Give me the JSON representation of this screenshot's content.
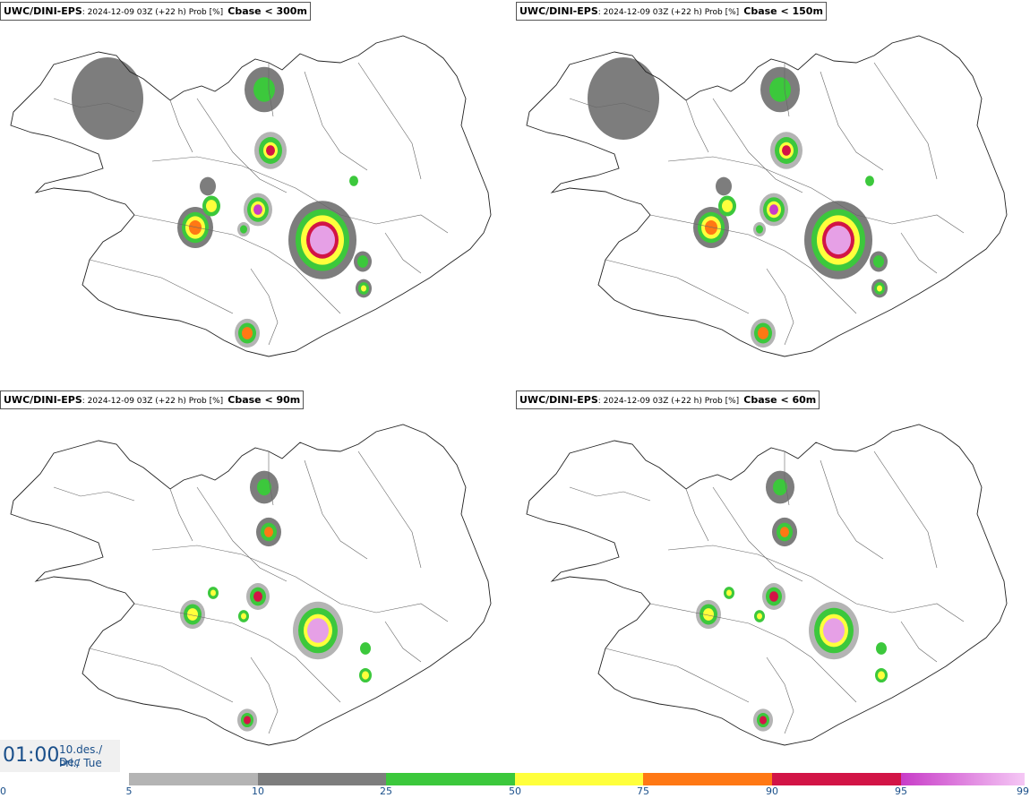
{
  "panels": [
    {
      "model": "UWC/DINI-EPS",
      "meta": ": 2024-12-09 03Z (+22 h) Prob [%]",
      "threshold": "Cbase < 300m"
    },
    {
      "model": "UWC/DINI-EPS",
      "meta": ": 2024-12-09 03Z (+22 h) Prob [%]",
      "threshold": "Cbase < 150m"
    },
    {
      "model": "UWC/DINI-EPS",
      "meta": ": 2024-12-09 03Z (+22 h) Prob [%]",
      "threshold": "Cbase < 90m"
    },
    {
      "model": "UWC/DINI-EPS",
      "meta": ": 2024-12-09 03Z (+22 h) Prob [%]",
      "threshold": "Cbase < 60m"
    }
  ],
  "valid_time": {
    "time": "01:00",
    "date_line1": "10.des./ Dec",
    "date_line2": "Þri./ Tue"
  },
  "colorbar": {
    "ticks": [
      "0",
      "5",
      "10",
      "25",
      "50",
      "75",
      "90",
      "95",
      "99"
    ],
    "segments": [
      {
        "from": "5",
        "to": "10",
        "color": "#b4b4b4"
      },
      {
        "from": "10",
        "to": "25",
        "color": "#7d7d7d"
      },
      {
        "from": "25",
        "to": "50",
        "color": "#3cc83c"
      },
      {
        "from": "50",
        "to": "75",
        "color": "#ffff3c"
      },
      {
        "from": "75",
        "to": "90",
        "color": "#ff7814"
      },
      {
        "from": "90",
        "to": "95",
        "color": "#d21446"
      },
      {
        "from": "95",
        "to": "99",
        "color": "#c83cc8",
        "gradient_to": "#f5c8f5"
      }
    ]
  }
}
